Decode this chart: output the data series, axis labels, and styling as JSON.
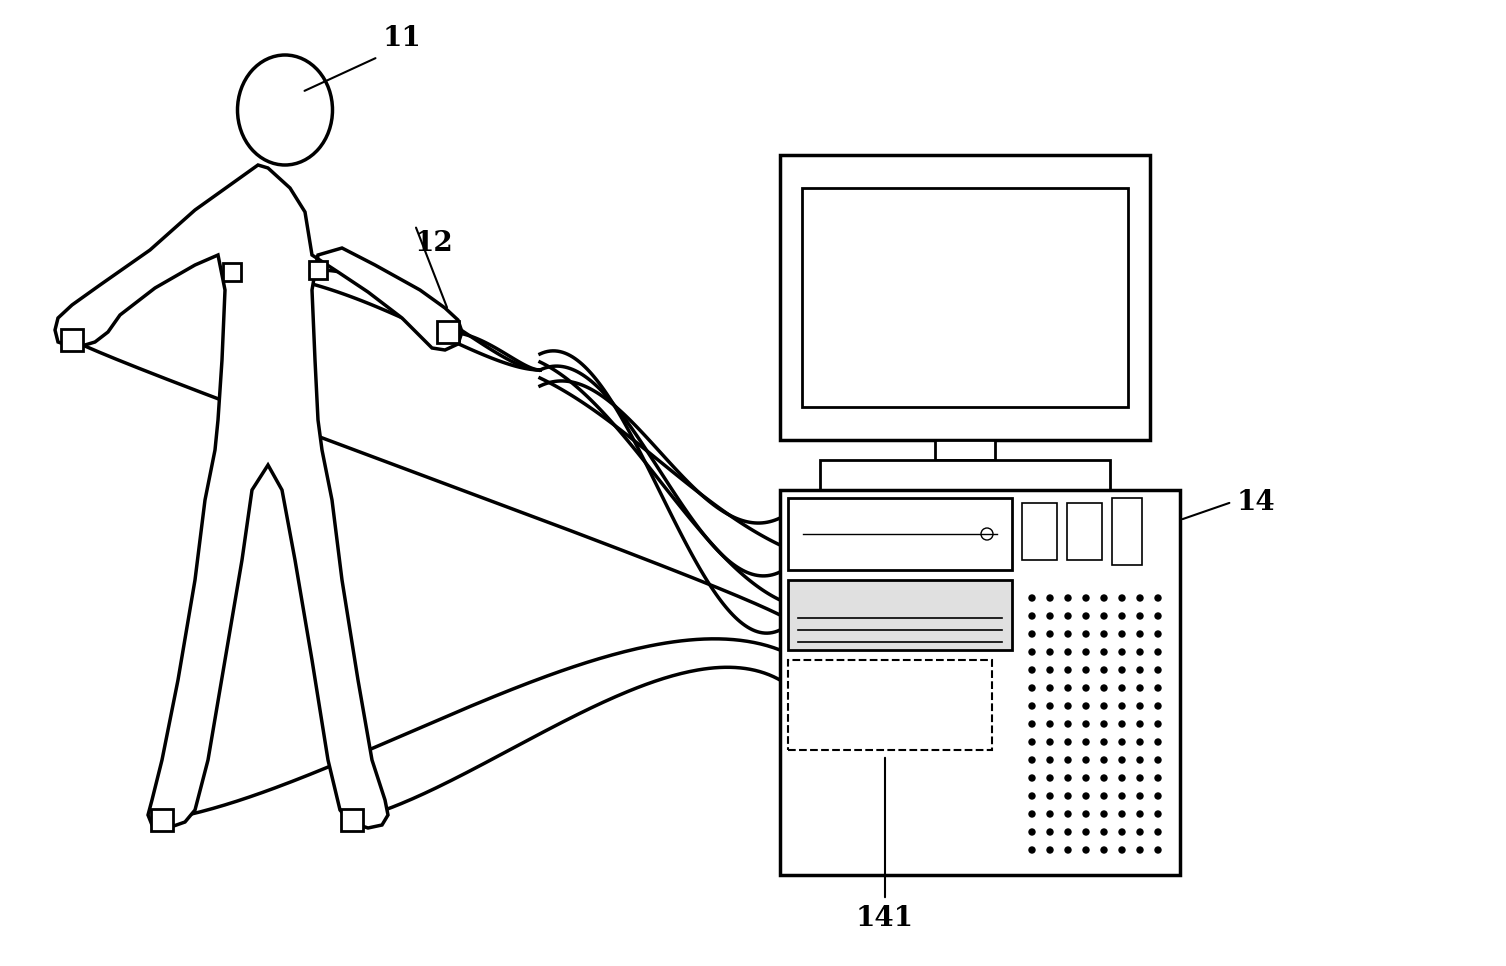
{
  "background_color": "#ffffff",
  "line_color": "#000000",
  "label_11": "11",
  "label_12": "12",
  "label_14": "14",
  "label_141": "141",
  "figsize": [
    15.06,
    9.66
  ],
  "dpi": 100
}
